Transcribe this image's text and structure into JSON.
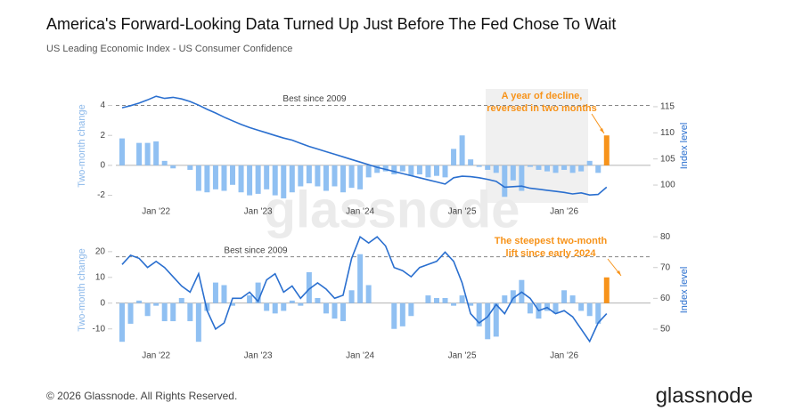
{
  "title": "America's Forward-Looking Data Turned Up Just Before The Fed Chose To Wait",
  "subtitle": "US Leading Economic Index - US Consumer Confidence",
  "watermark": "glassnode",
  "footer": "© 2026 Glassnode. All Rights Reserved.",
  "logo": "glassnode",
  "chart_data": [
    {
      "type": "bar",
      "ylabel": "Two-month change",
      "y2label": "Index level",
      "categories": [
        null,
        null,
        null,
        null,
        "Jan '22",
        null,
        null,
        null,
        null,
        null,
        null,
        null,
        null,
        null,
        null,
        null,
        "Jan '23",
        null,
        null,
        null,
        null,
        null,
        null,
        null,
        null,
        null,
        null,
        null,
        "Jan '24",
        null,
        null,
        null,
        null,
        null,
        null,
        null,
        null,
        null,
        null,
        null,
        "Jan '25",
        null,
        null,
        null,
        null,
        null,
        null,
        null,
        null,
        null,
        null,
        null,
        "Jan '26",
        null,
        null,
        null,
        null,
        null
      ],
      "values": [
        1.8,
        0,
        1.5,
        1.5,
        1.6,
        0.3,
        -0.2,
        0,
        -0.3,
        -1.7,
        -1.8,
        -1.6,
        -1.7,
        -1.3,
        -1.8,
        -2.0,
        -1.9,
        -1.6,
        -2.0,
        -2.2,
        -1.8,
        -1.4,
        -1.2,
        -1.4,
        -1.7,
        -1.4,
        -1.8,
        -1.5,
        -1.6,
        -0.8,
        -0.5,
        -0.4,
        -0.6,
        -0.4,
        -0.7,
        -0.6,
        -0.8,
        -0.7,
        -0.8,
        1.1,
        2.0,
        0.4,
        -0.1,
        -0.3,
        -0.5,
        -2.1,
        -1.0,
        -1.7,
        -0.1,
        -0.3,
        -0.4,
        -0.5,
        -0.3,
        -0.5,
        -0.4,
        0.3,
        -0.5,
        2.0
      ],
      "color": "#90c0f2",
      "last_color": "#f7931a",
      "line_values": [
        114.8,
        115.2,
        115.7,
        116.3,
        117.0,
        116.6,
        116.8,
        116.5,
        116.0,
        115.3,
        114.5,
        113.8,
        113.0,
        112.3,
        111.6,
        111.0,
        110.5,
        110.0,
        109.5,
        109.0,
        108.6,
        108.0,
        107.4,
        106.9,
        106.4,
        105.9,
        105.4,
        104.9,
        104.4,
        103.9,
        103.4,
        103.0,
        102.6,
        102.2,
        101.8,
        101.4,
        101.0,
        100.6,
        100.2,
        101.4,
        101.7,
        101.6,
        101.4,
        101.1,
        100.7,
        99.6,
        99.7,
        99.8,
        99.4,
        99.2,
        99.0,
        98.8,
        98.6,
        98.3,
        98.5,
        98.1,
        98.2,
        99.6
      ],
      "line_color": "#2a6fcf",
      "ylim": [
        -2.5,
        5.1
      ],
      "yticks": [
        -2,
        0,
        2,
        4
      ],
      "y2lim": [
        96.6,
        118.4
      ],
      "y2ticks": [
        100,
        105,
        110,
        115
      ],
      "reference": {
        "value": 4,
        "label": "Best since 2009"
      },
      "annotation": [
        "A year of decline,",
        "reversed in two months"
      ]
    },
    {
      "type": "bar",
      "ylabel": "Two-month change",
      "y2label": "Index level",
      "categories": [
        null,
        null,
        null,
        null,
        "Jan '22",
        null,
        null,
        null,
        null,
        null,
        null,
        null,
        null,
        null,
        null,
        null,
        "Jan '23",
        null,
        null,
        null,
        null,
        null,
        null,
        null,
        null,
        null,
        null,
        null,
        "Jan '24",
        null,
        null,
        null,
        null,
        null,
        null,
        null,
        null,
        null,
        null,
        null,
        "Jan '25",
        null,
        null,
        null,
        null,
        null,
        null,
        null,
        null,
        null,
        null,
        null,
        "Jan '26",
        null,
        null,
        null,
        null,
        null
      ],
      "values": [
        -15,
        -8,
        1,
        -5,
        -1,
        -7,
        -7,
        2,
        -7,
        -15,
        -3,
        8,
        7,
        -1,
        0,
        3,
        8,
        -3,
        -4,
        -3,
        1,
        -1,
        12,
        2,
        -4,
        -6,
        -7,
        5,
        19,
        7,
        0,
        0,
        -10,
        -9,
        -5,
        0,
        3,
        2,
        2,
        -1,
        3,
        -1,
        -9,
        -14,
        -13,
        3,
        5,
        9,
        -4,
        -6,
        -3,
        -4,
        5,
        3,
        -3,
        -5,
        -8,
        10
      ],
      "color": "#90c0f2",
      "last_color": "#f7931a",
      "line_values": [
        71,
        74,
        73,
        70,
        72,
        70,
        67,
        64,
        62,
        68,
        56,
        50,
        52,
        60,
        60,
        62,
        59,
        66,
        68,
        62,
        64,
        60,
        63,
        65,
        63,
        60,
        61,
        73,
        80,
        78,
        80,
        77,
        70,
        69,
        67,
        70,
        71,
        72,
        75,
        72,
        65,
        55,
        52,
        54,
        58,
        55,
        60,
        62,
        60,
        56,
        57,
        55,
        56,
        54,
        50,
        46,
        52,
        55
      ],
      "line_color": "#2a6fcf",
      "ylim": [
        -17,
        27.2
      ],
      "yticks": [
        -10,
        0,
        10,
        20
      ],
      "y2lim": [
        44.2,
        81.2
      ],
      "y2ticks": [
        50,
        60,
        70,
        80
      ],
      "reference": {
        "value": 18,
        "label": "Best since 2009"
      },
      "annotation": [
        "The steepest two-month",
        "lift since early 2024"
      ]
    }
  ]
}
